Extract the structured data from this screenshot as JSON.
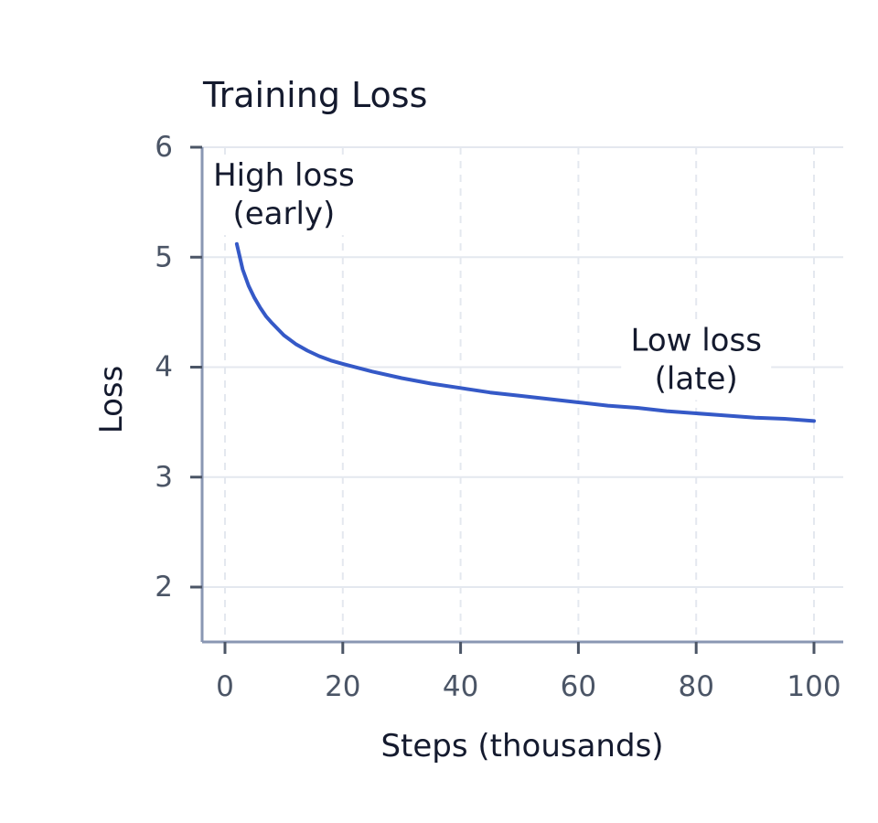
{
  "chart_data": {
    "type": "line",
    "title": "Training Loss",
    "xlabel": "Steps (thousands)",
    "ylabel": "Loss",
    "xlim": [
      -2,
      105
    ],
    "ylim": [
      1.5,
      6
    ],
    "x_ticks": [
      0,
      20,
      40,
      60,
      80,
      100
    ],
    "y_ticks": [
      2,
      3,
      4,
      5,
      6
    ],
    "grid": true,
    "series": [
      {
        "color": "#3559c7",
        "x": [
          2,
          3,
          4,
          5,
          6,
          7,
          8,
          10,
          12,
          14,
          16,
          18,
          20,
          25,
          30,
          35,
          40,
          45,
          50,
          55,
          60,
          65,
          70,
          75,
          80,
          85,
          90,
          95,
          100
        ],
        "y": [
          5.12,
          4.89,
          4.74,
          4.63,
          4.54,
          4.46,
          4.4,
          4.29,
          4.21,
          4.15,
          4.1,
          4.06,
          4.03,
          3.96,
          3.9,
          3.85,
          3.81,
          3.77,
          3.74,
          3.71,
          3.68,
          3.65,
          3.63,
          3.6,
          3.58,
          3.56,
          3.54,
          3.53,
          3.51
        ]
      }
    ],
    "annotations": [
      {
        "lines": [
          "High loss",
          "(early)"
        ],
        "x": 10,
        "y": 5.55
      },
      {
        "lines": [
          "Low loss",
          "(late)"
        ],
        "x": 80,
        "y": 4.05
      }
    ],
    "colors": {
      "line": "#3559c7",
      "axis": "#8a97b3",
      "grid": "#e4e8ef",
      "text": "#141a2e",
      "tick_text": "#4b5566"
    }
  }
}
